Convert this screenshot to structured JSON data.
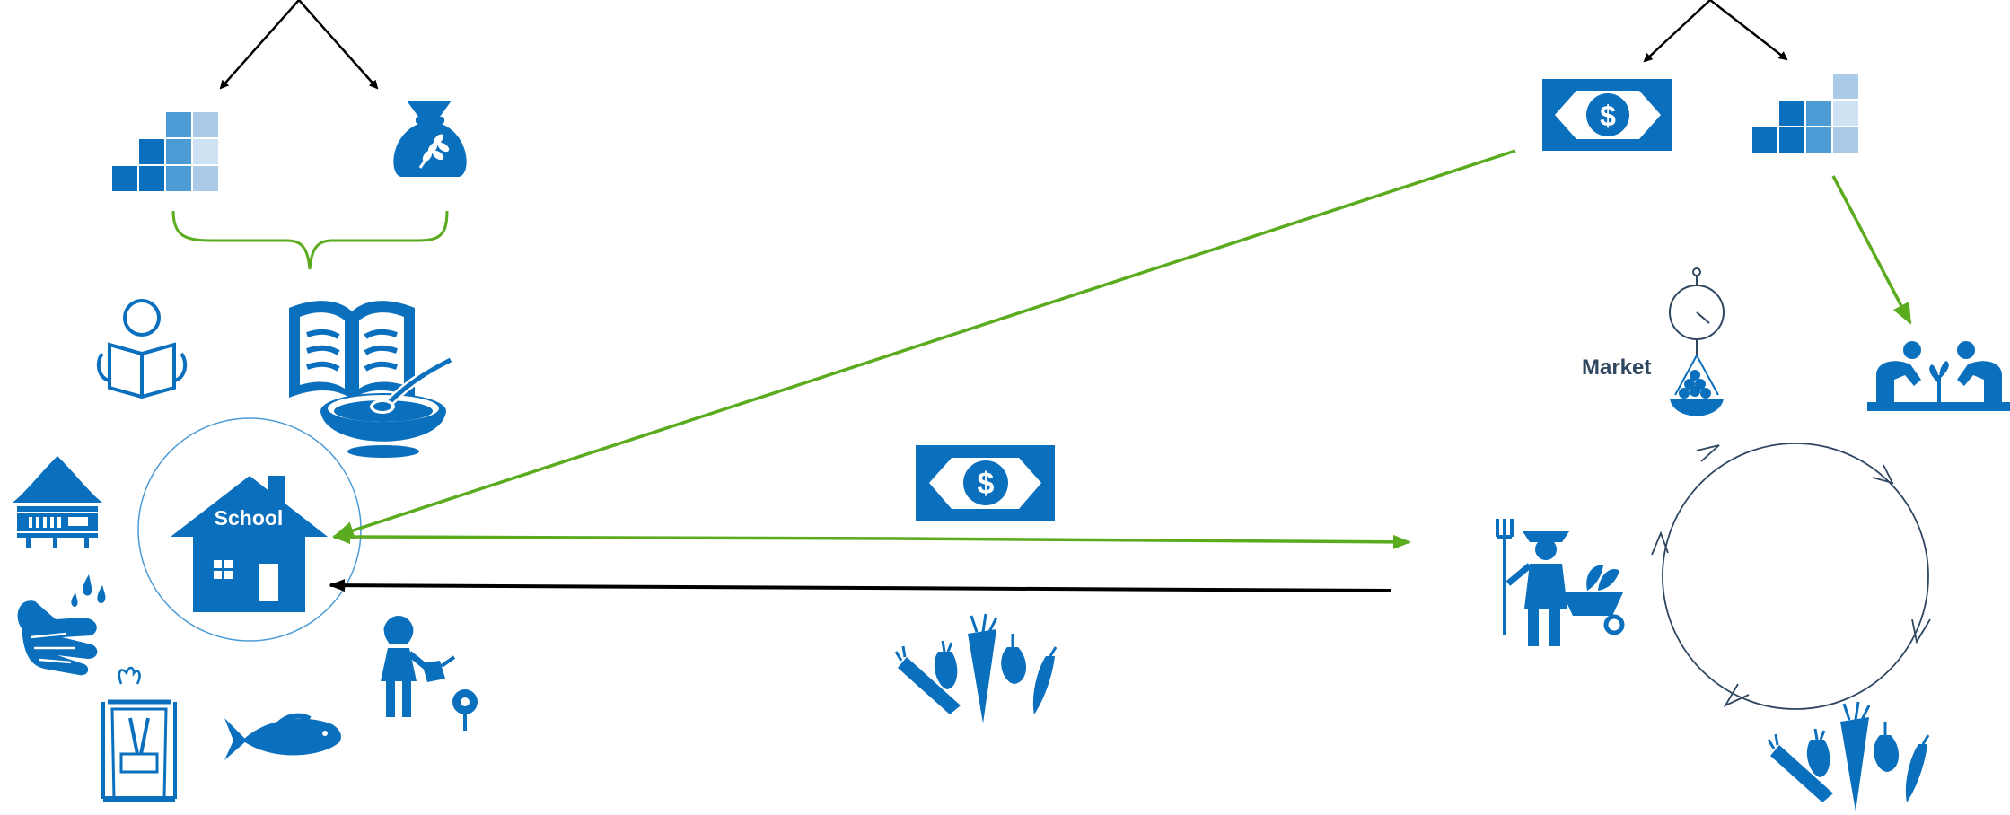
{
  "labels": {
    "school": "School",
    "market": "Market"
  },
  "colors": {
    "brand_blue": "#0a6fbc",
    "light_blue": "#4d9bd5",
    "pale_blue": "#a9cbe8",
    "paler_blue": "#cfe2f3",
    "green_arrow": "#5aab1e",
    "black_arrow": "#000000",
    "cycle_stroke": "#2f4661",
    "market_text": "#2f4661"
  },
  "icons": {
    "top_left_branch": [
      "staircase-blocks-icon",
      "grain-sack-icon"
    ],
    "top_right_branch": [
      "dollar-bill-icon",
      "staircase-blocks-icon"
    ],
    "school_cluster": [
      "reading-child-icon",
      "book-and-bowl-icon",
      "school-house-icon",
      "stilt-house-icon",
      "handwashing-icon",
      "latrine-icon",
      "fish-icon",
      "girl-watering-flower-icon"
    ],
    "flows": [
      "dollar-bill-icon",
      "vegetables-icon"
    ],
    "market_cluster": [
      "hanging-scale-icon",
      "farmers-planting-icon",
      "farmer-with-wheelbarrow-icon",
      "cycle-icon",
      "vegetables-icon"
    ]
  }
}
